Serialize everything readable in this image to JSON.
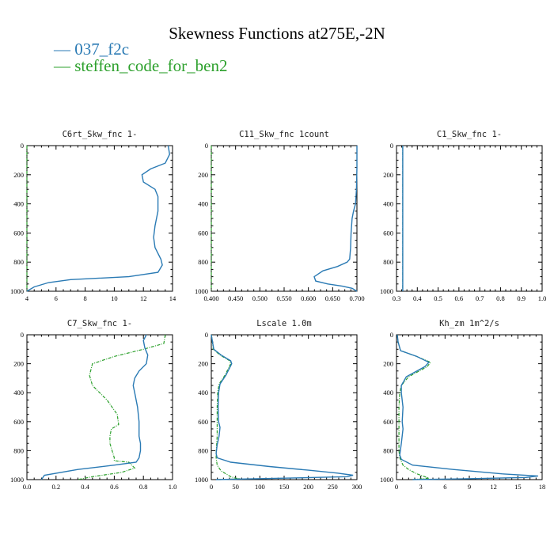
{
  "title": "Skewness Functions at275E,-2N",
  "legend": [
    {
      "label": "037_f2c",
      "color": "#2a7ab4"
    },
    {
      "label": "steffen_code_for_ben2",
      "color": "#2ca02c"
    }
  ],
  "chart_data": [
    {
      "type": "line",
      "title": "C6rt_Skw_fnc   1-",
      "xlim": [
        4,
        14
      ],
      "xticks": [
        "4",
        "6",
        "8",
        "10",
        "12",
        "14"
      ],
      "xtickvals": [
        4,
        6,
        8,
        10,
        12,
        14
      ],
      "ylim": [
        0,
        1000
      ],
      "yticks": [
        "0",
        "200",
        "400",
        "600",
        "800",
        "1000"
      ],
      "yinverted": true,
      "series": [
        {
          "x": [
            13.7,
            13.8,
            13.5,
            12.5,
            11.9,
            12.0,
            12.8,
            13.0,
            13.0,
            12.8,
            12.7,
            12.8,
            13.2,
            13.3,
            13.0,
            11.0,
            7.0,
            5.5,
            4.5,
            4.0
          ],
          "y": [
            0,
            60,
            120,
            160,
            200,
            250,
            300,
            350,
            450,
            550,
            630,
            700,
            780,
            820,
            870,
            900,
            920,
            940,
            970,
            1000
          ]
        },
        {
          "x": [
            4.0,
            4.0,
            4.0,
            4.0,
            4.0,
            4.0
          ],
          "y": [
            0,
            200,
            400,
            600,
            800,
            1000
          ]
        }
      ]
    },
    {
      "type": "line",
      "title": "C11_Skw_fnc   1count",
      "xlim": [
        0.4,
        0.7
      ],
      "xticks": [
        "0.400",
        "0.450",
        "0.500",
        "0.550",
        "0.600",
        "0.650",
        "0.700"
      ],
      "xtickvals": [
        0.4,
        0.45,
        0.5,
        0.55,
        0.6,
        0.65,
        0.7
      ],
      "ylim": [
        0,
        1000
      ],
      "yticks": [
        "0",
        "200",
        "400",
        "600",
        "800",
        "1000"
      ],
      "yinverted": true,
      "series": [
        {
          "x": [
            0.7,
            0.7,
            0.699,
            0.697,
            0.693,
            0.69,
            0.688,
            0.687,
            0.685,
            0.68,
            0.66,
            0.63,
            0.612,
            0.615,
            0.64,
            0.67,
            0.69,
            0.7
          ],
          "y": [
            0,
            150,
            300,
            400,
            450,
            500,
            600,
            700,
            780,
            800,
            830,
            860,
            900,
            930,
            950,
            965,
            980,
            1000
          ]
        },
        {
          "x": [
            0.4,
            0.4,
            0.4,
            0.4
          ],
          "y": [
            0,
            400,
            800,
            1000
          ]
        }
      ]
    },
    {
      "type": "line",
      "title": "C1_Skw_fnc   1-",
      "xlim": [
        0.3,
        1.0
      ],
      "xticks": [
        "0.3",
        "0.4",
        "0.5",
        "0.6",
        "0.7",
        "0.8",
        "0.9",
        "1.0"
      ],
      "xtickvals": [
        0.3,
        0.4,
        0.5,
        0.6,
        0.7,
        0.8,
        0.9,
        1.0
      ],
      "ylim": [
        0,
        1000
      ],
      "yticks": [
        "0",
        "200",
        "400",
        "600",
        "800",
        "1000"
      ],
      "yinverted": true,
      "series": [
        {
          "x": [
            0.33,
            0.33
          ],
          "y": [
            0,
            1000
          ]
        },
        {
          "x": [
            0.33,
            0.33
          ],
          "y": [
            0,
            1000
          ]
        }
      ]
    },
    {
      "type": "line",
      "title": "C7_Skw_fnc   1-",
      "xlim": [
        0.0,
        1.0
      ],
      "xticks": [
        "0.0",
        "0.2",
        "0.4",
        "0.6",
        "0.8",
        "1.0"
      ],
      "xtickvals": [
        0.0,
        0.2,
        0.4,
        0.6,
        0.8,
        1.0
      ],
      "ylim": [
        0,
        1000
      ],
      "yticks": [
        "0",
        "200",
        "400",
        "600",
        "800",
        "1000"
      ],
      "yinverted": true,
      "series": [
        {
          "x": [
            0.82,
            0.8,
            0.81,
            0.83,
            0.82,
            0.77,
            0.74,
            0.73,
            0.74,
            0.76,
            0.77,
            0.77,
            0.78,
            0.78,
            0.77,
            0.75,
            0.6,
            0.35,
            0.12,
            0.1
          ],
          "y": [
            0,
            40,
            90,
            140,
            200,
            250,
            300,
            350,
            400,
            500,
            600,
            700,
            750,
            800,
            850,
            880,
            900,
            930,
            970,
            1000
          ]
        },
        {
          "x": [
            0.95,
            0.94,
            0.8,
            0.6,
            0.45,
            0.43,
            0.45,
            0.55,
            0.62,
            0.63,
            0.58,
            0.57,
            0.57,
            0.6,
            0.6,
            0.7,
            0.74,
            0.65,
            0.45,
            0.35
          ],
          "y": [
            0,
            60,
            100,
            150,
            200,
            280,
            350,
            450,
            550,
            620,
            650,
            700,
            750,
            850,
            870,
            880,
            920,
            950,
            980,
            1000
          ]
        }
      ]
    },
    {
      "type": "line",
      "title": "Lscale   1.0m",
      "xlim": [
        0,
        300
      ],
      "xticks": [
        "0",
        "50",
        "100",
        "150",
        "200",
        "250",
        "300"
      ],
      "xtickvals": [
        0,
        50,
        100,
        150,
        200,
        250,
        300
      ],
      "ylim": [
        0,
        1000
      ],
      "yticks": [
        "0",
        "200",
        "400",
        "600",
        "800",
        "1000"
      ],
      "yinverted": true,
      "series": [
        {
          "x": [
            0,
            2,
            5,
            20,
            40,
            42,
            30,
            18,
            15,
            14,
            15,
            18,
            16,
            12,
            10,
            12,
            40,
            120,
            200,
            260,
            292,
            280,
            150,
            10
          ],
          "y": [
            0,
            40,
            100,
            140,
            180,
            200,
            280,
            340,
            400,
            500,
            600,
            640,
            700,
            760,
            820,
            850,
            880,
            910,
            935,
            955,
            970,
            980,
            990,
            1000
          ]
        },
        {
          "x": [
            0,
            2,
            4,
            18,
            38,
            40,
            28,
            16,
            13,
            12,
            12,
            12,
            11,
            10,
            10,
            12,
            20,
            30,
            40,
            50,
            60,
            15
          ],
          "y": [
            0,
            40,
            100,
            140,
            180,
            200,
            280,
            340,
            400,
            500,
            600,
            700,
            760,
            820,
            850,
            900,
            940,
            960,
            980,
            990,
            995,
            1000
          ]
        }
      ]
    },
    {
      "type": "line",
      "title": "Kh_zm   1m^2/s",
      "xlim": [
        0,
        18
      ],
      "xticks": [
        "0",
        "3",
        "6",
        "9",
        "12",
        "15",
        "18"
      ],
      "xtickvals": [
        0,
        3,
        6,
        9,
        12,
        15,
        18
      ],
      "ylim": [
        0,
        1000
      ],
      "yticks": [
        "0",
        "200",
        "400",
        "600",
        "800",
        "1000"
      ],
      "yinverted": true,
      "series": [
        {
          "x": [
            0.1,
            0.2,
            0.5,
            2.5,
            4.0,
            3.5,
            1.2,
            0.6,
            0.6,
            0.8,
            0.7,
            0.8,
            0.6,
            0.4,
            0.6,
            2.0,
            7.0,
            13.0,
            17.5,
            16.0,
            8.0,
            2.0
          ],
          "y": [
            0,
            50,
            110,
            150,
            190,
            220,
            290,
            350,
            400,
            500,
            600,
            650,
            750,
            830,
            860,
            900,
            930,
            960,
            975,
            985,
            995,
            1000
          ]
        },
        {
          "x": [
            0.1,
            0.2,
            0.5,
            2.5,
            4.2,
            3.8,
            1.5,
            0.6,
            0.4,
            0.3,
            0.3,
            0.3,
            0.3,
            0.4,
            0.8,
            1.5,
            2.5,
            3.5,
            4.0,
            2.0
          ],
          "y": [
            0,
            50,
            110,
            150,
            190,
            220,
            290,
            350,
            400,
            500,
            600,
            700,
            800,
            850,
            900,
            930,
            960,
            980,
            990,
            1000
          ]
        }
      ]
    }
  ]
}
